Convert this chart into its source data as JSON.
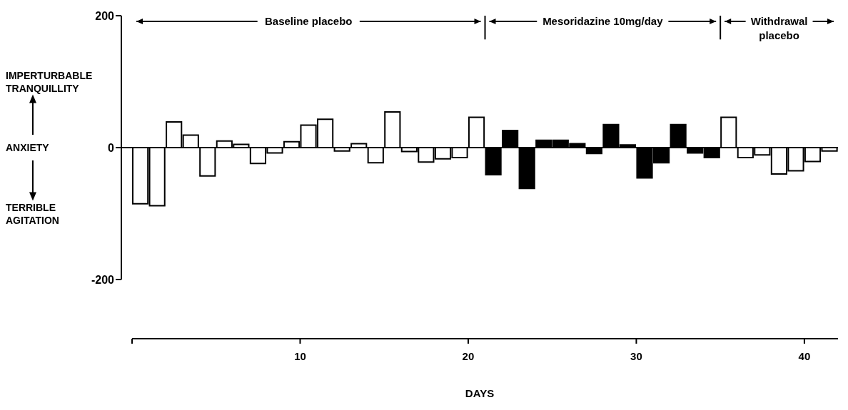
{
  "chart_data": {
    "type": "bar",
    "xlabel": "DAYS",
    "x": [
      0.5,
      1.5,
      2.5,
      3.5,
      4.5,
      5.5,
      6.5,
      7.5,
      8.5,
      9.5,
      10.5,
      11.5,
      12.5,
      13.5,
      14.5,
      15.5,
      16.5,
      17.5,
      18.5,
      19.5,
      20.5,
      21.5,
      22.5,
      23.5,
      24.5,
      25.5,
      26.5,
      27.5,
      28.5,
      29.5,
      30.5,
      31.5,
      32.5,
      33.5,
      34.5,
      35.5,
      36.5,
      37.5,
      38.5,
      39.5,
      40.5,
      41.5
    ],
    "values": [
      -85,
      -88,
      39,
      19,
      -43,
      10,
      5,
      -24,
      -8,
      9,
      34,
      43,
      -5,
      6,
      -23,
      54,
      -6,
      -22,
      -17,
      -15,
      46,
      -41,
      26,
      -62,
      11,
      11,
      6,
      -9,
      35,
      4,
      -46,
      -23,
      35,
      -8,
      -15,
      46,
      -15,
      -11,
      -40,
      -35,
      -21,
      -5
    ],
    "colors": [
      "#ffffff",
      "#ffffff",
      "#ffffff",
      "#ffffff",
      "#ffffff",
      "#ffffff",
      "#ffffff",
      "#ffffff",
      "#ffffff",
      "#ffffff",
      "#ffffff",
      "#ffffff",
      "#ffffff",
      "#ffffff",
      "#ffffff",
      "#ffffff",
      "#ffffff",
      "#ffffff",
      "#ffffff",
      "#ffffff",
      "#ffffff",
      "#000000",
      "#000000",
      "#000000",
      "#000000",
      "#000000",
      "#000000",
      "#000000",
      "#000000",
      "#000000",
      "#000000",
      "#000000",
      "#000000",
      "#000000",
      "#000000",
      "#ffffff",
      "#ffffff",
      "#ffffff",
      "#ffffff",
      "#ffffff",
      "#ffffff",
      "#ffffff"
    ],
    "xlim": [
      0,
      42
    ],
    "xticks": [
      10,
      20,
      30,
      40
    ],
    "ylim": [
      -200,
      200
    ],
    "yticks": [
      -200,
      0,
      200
    ],
    "ref_lines": [
      {
        "axis": "y",
        "value": 0,
        "color": "#000000"
      },
      {
        "axis": "x",
        "value": 21,
        "color": "#000000"
      },
      {
        "axis": "x",
        "value": 35,
        "color": "#000000"
      }
    ],
    "annotations": [
      "IMPERTURBABLE TRANQUILLITY",
      "ANXIETY",
      "TERRIBLE AGITATION",
      "Baseline placebo",
      "Mesoridazine 10mg/day",
      "Withdrawal placebo"
    ]
  }
}
